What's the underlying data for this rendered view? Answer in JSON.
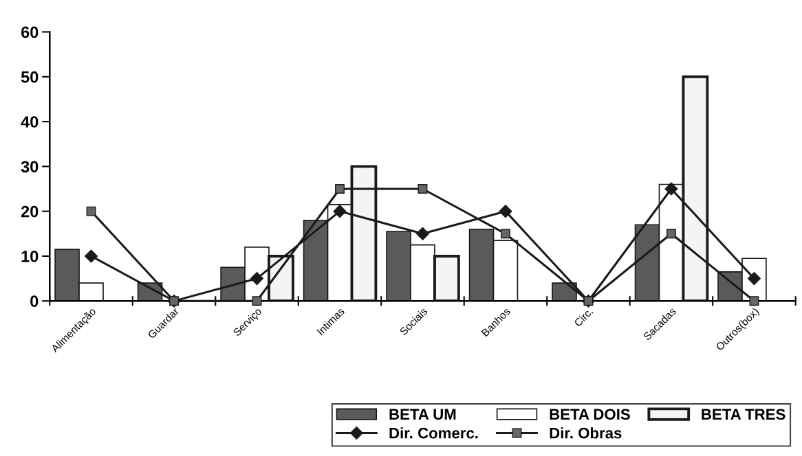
{
  "chart_data": {
    "type": "bar",
    "categories": [
      "Alimentação",
      "Guardar",
      "Serviço",
      "Intimas",
      "Sociais",
      "Banhos",
      "Circ.",
      "Sacadas",
      "Outros(box)"
    ],
    "series": [
      {
        "name": "BETA UM",
        "color": "#5a5a5a",
        "values": [
          11.5,
          4,
          7.5,
          18,
          15.5,
          16,
          4,
          17,
          6.5
        ]
      },
      {
        "name": "BETA DOIS",
        "color": "#ffffff",
        "values": [
          4,
          null,
          12,
          21.5,
          12.5,
          13.5,
          null,
          26,
          9.5
        ]
      },
      {
        "name": "BETA TRES",
        "color": "#f4f4f4",
        "values": [
          null,
          null,
          10,
          30,
          10,
          null,
          null,
          50,
          null
        ]
      },
      {
        "name": "Dir. Comerc.",
        "type": "line",
        "color": "#1a1a1a",
        "marker": "diamond",
        "values": [
          10,
          0,
          5,
          20,
          15,
          20,
          0,
          25,
          5
        ]
      },
      {
        "name": "Dir. Obras",
        "type": "line",
        "color": "#1a1a1a",
        "marker": "square",
        "values": [
          20,
          0,
          0,
          25,
          25,
          15,
          0,
          15,
          0
        ]
      }
    ],
    "ylim": [
      0,
      60
    ],
    "yticks": [
      0,
      10,
      20,
      30,
      40,
      50,
      60
    ],
    "grid": false,
    "legend": "bottom right",
    "line_style": "solid"
  }
}
